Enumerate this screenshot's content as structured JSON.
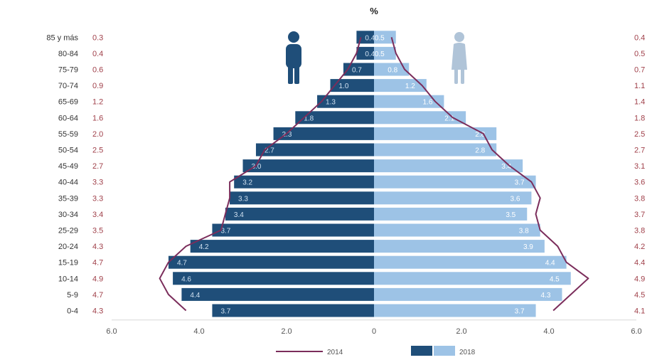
{
  "chart_data": {
    "type": "bar",
    "title": "",
    "unit_label": "%",
    "categories": [
      "85 y más",
      "80-84",
      "75-79",
      "70-74",
      "65-69",
      "60-64",
      "55-59",
      "50-54",
      "45-49",
      "40-44",
      "35-39",
      "30-34",
      "25-29",
      "20-24",
      "15-19",
      "10-14",
      "5-9",
      "0-4"
    ],
    "series": [
      {
        "name": "2018",
        "side": "male",
        "values": [
          0.4,
          0.4,
          0.7,
          1.0,
          1.3,
          1.8,
          2.3,
          2.7,
          3.0,
          3.2,
          3.3,
          3.4,
          3.7,
          4.2,
          4.7,
          4.6,
          4.4,
          3.7
        ]
      },
      {
        "name": "2018",
        "side": "female",
        "values": [
          0.5,
          0.5,
          0.8,
          1.2,
          1.6,
          2.1,
          2.8,
          2.8,
          3.4,
          3.7,
          3.6,
          3.5,
          3.8,
          3.9,
          4.4,
          4.5,
          4.3,
          3.7
        ]
      },
      {
        "name": "2014",
        "side": "male",
        "values": [
          0.3,
          0.4,
          0.6,
          0.9,
          1.2,
          1.6,
          2.0,
          2.5,
          2.7,
          3.3,
          3.3,
          3.4,
          3.5,
          4.3,
          4.7,
          4.9,
          4.7,
          4.3
        ]
      },
      {
        "name": "2014",
        "side": "female",
        "values": [
          0.4,
          0.5,
          0.7,
          1.1,
          1.4,
          1.8,
          2.5,
          2.7,
          3.1,
          3.6,
          3.8,
          3.7,
          3.8,
          4.2,
          4.4,
          4.9,
          4.5,
          4.1
        ]
      }
    ],
    "left_side_labels": [
      "0.3",
      "0.4",
      "0.6",
      "0.9",
      "1.2",
      "1.6",
      "2.0",
      "2.5",
      "2.7",
      "3.3",
      "3.3",
      "3.4",
      "3.5",
      "4.3",
      "4.7",
      "4.9",
      "4.7",
      "4.3"
    ],
    "right_side_labels": [
      "0.4",
      "0.5",
      "0.7",
      "1.1",
      "1.4",
      "1.8",
      "2.5",
      "2.7",
      "3.1",
      "3.6",
      "3.8",
      "3.7",
      "3.8",
      "4.2",
      "4.4",
      "4.9",
      "4.5",
      "4.1"
    ],
    "male_bar_labels": [
      "0.4",
      "0.4",
      "0.7",
      "1.0",
      "1.3",
      "1.8",
      "2.3",
      "2.7",
      "3.0",
      "3.2",
      "3.3",
      "3.4",
      "3.7",
      "4.2",
      "4.7",
      "4.6",
      "4.4",
      "3.7"
    ],
    "female_bar_labels": [
      "0.5",
      "0.5",
      "0.8",
      "1.2",
      "1.6",
      "2.1",
      "2.8",
      "2.8",
      "3.4",
      "3.7",
      "3.6",
      "3.5",
      "3.8",
      "3.9",
      "4.4",
      "4.5",
      "4.3",
      "3.7"
    ],
    "x_ticks": [
      "6.0",
      "4.0",
      "2.0",
      "0",
      "2.0",
      "4.0",
      "6.0"
    ],
    "xlim": [
      -6,
      6
    ],
    "legend": {
      "line_label": "2014",
      "bar_label": "2018",
      "placement": "bottom-center"
    },
    "colors": {
      "male_bar": "#1f4e79",
      "female_bar": "#9dc3e6",
      "line_2014": "#7b2d5b",
      "side_labels": "#a0404a",
      "category_text": "#333333",
      "male_icon": "#1f4e79",
      "female_icon": "#b0c4d8"
    },
    "icons": [
      "male-figure-icon",
      "female-figure-icon"
    ]
  }
}
